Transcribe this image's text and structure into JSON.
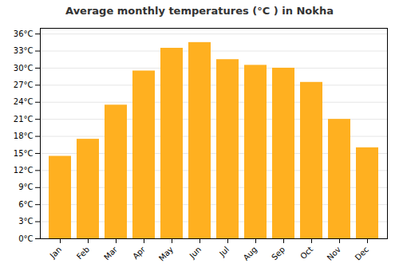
{
  "chart_data": {
    "type": "bar",
    "title": "Average monthly temperatures (°C ) in Nokha",
    "categories": [
      "Jan",
      "Feb",
      "Mar",
      "Apr",
      "May",
      "Jun",
      "Jul",
      "Aug",
      "Sep",
      "Oct",
      "Nov",
      "Dec"
    ],
    "values": [
      14.5,
      17.5,
      23.5,
      29.5,
      33.5,
      34.5,
      31.5,
      30.5,
      30.0,
      27.5,
      21.0,
      16.0
    ],
    "color": "#FFB020",
    "ylim": [
      0,
      37
    ],
    "yticks": [
      {
        "value": 0,
        "label": "0°C"
      },
      {
        "value": 3,
        "label": "3°C"
      },
      {
        "value": 6,
        "label": "6°C"
      },
      {
        "value": 9,
        "label": "9°C"
      },
      {
        "value": 12,
        "label": "12°C"
      },
      {
        "value": 15,
        "label": "15°C"
      },
      {
        "value": 18,
        "label": "18°C"
      },
      {
        "value": 21,
        "label": "21°C"
      },
      {
        "value": 24,
        "label": "24°C"
      },
      {
        "value": 27,
        "label": "27°C"
      },
      {
        "value": 30,
        "label": "30°C"
      },
      {
        "value": 33,
        "label": "33°C"
      },
      {
        "value": 36,
        "label": "36°C"
      }
    ],
    "grid": true
  }
}
